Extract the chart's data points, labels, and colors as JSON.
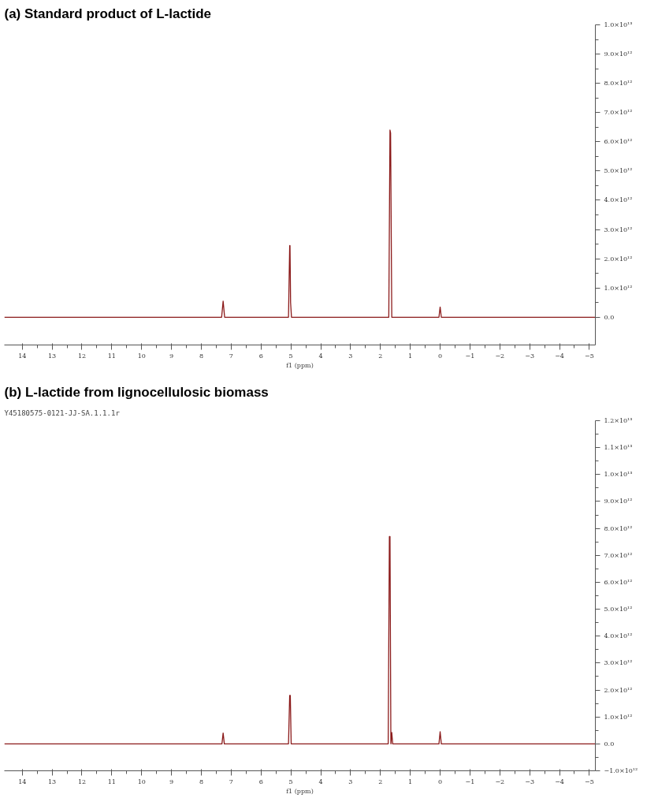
{
  "chart_data": [
    {
      "type": "line",
      "title": "(a) Standard product of L-lactide",
      "xlabel": "f1 (ppm)",
      "x": [
        14.6,
        7.32,
        7.27,
        7.22,
        5.08,
        5.04,
        5.03,
        5.01,
        4.98,
        1.72,
        1.68,
        1.66,
        1.62,
        1.55,
        0.04,
        0.0,
        -0.04,
        -5.2
      ],
      "series": [
        {
          "color": "#8b1a1a",
          "values": [
            0,
            0,
            550000000000.0,
            0,
            0,
            2450000000000.0,
            2450000000000.0,
            500000000000.0,
            0,
            0,
            6400000000000.0,
            6300000000000.0,
            0,
            0,
            0,
            350000000000.0,
            0,
            0
          ]
        }
      ],
      "xlim": [
        14.6,
        -5.2
      ],
      "xticks": [
        14,
        13,
        12,
        11,
        10,
        9,
        8,
        7,
        6,
        5,
        4,
        3,
        2,
        1,
        0,
        {
          "value": -1,
          "label": "−1"
        },
        {
          "value": -2,
          "label": "−2"
        },
        {
          "value": -3,
          "label": "−3"
        },
        {
          "value": -4,
          "label": "−4"
        },
        {
          "value": -5,
          "label": "−5"
        }
      ],
      "ylim": [
        -950000000000.0,
        10000000000000.0
      ],
      "yticks": [
        {
          "value": 0,
          "label": "0.0"
        },
        {
          "value": 1000000000000.0,
          "label": "1.0×10¹²"
        },
        {
          "value": 2000000000000.0,
          "label": "2.0×10¹²"
        },
        {
          "value": 3000000000000.0,
          "label": "3.0×10¹²"
        },
        {
          "value": 4000000000000.0,
          "label": "4.0×10¹²"
        },
        {
          "value": 5000000000000.0,
          "label": "5.0×10¹²"
        },
        {
          "value": 6000000000000.0,
          "label": "6.0×10¹²"
        },
        {
          "value": 7000000000000.0,
          "label": "7.0×10¹²"
        },
        {
          "value": 8000000000000.0,
          "label": "8.0×10¹²"
        },
        {
          "value": 9000000000000.0,
          "label": "9.0×10¹²"
        },
        {
          "value": 10000000000000.0,
          "label": "1.0×10¹³"
        }
      ],
      "grid": false,
      "marker": "none",
      "line_style": "solid"
    },
    {
      "type": "line",
      "title": "(b) L-lactide from lignocellulosic biomass",
      "xlabel": "f1 (ppm)",
      "annotations": [
        "Y45180575-0121-JJ-SA.1.1.1r"
      ],
      "x": [
        14.6,
        7.31,
        7.27,
        7.23,
        5.08,
        5.04,
        5.02,
        4.99,
        1.74,
        1.7,
        1.68,
        1.65,
        1.62,
        1.59,
        1.52,
        0.04,
        0.0,
        -0.04,
        -5.2
      ],
      "series": [
        {
          "color": "#8b1a1a",
          "values": [
            0,
            0,
            400000000000.0,
            0,
            0,
            1800000000000.0,
            1800000000000.0,
            0,
            0,
            7700000000000.0,
            7700000000000.0,
            0,
            420000000000.0,
            0,
            0,
            0,
            450000000000.0,
            0,
            0
          ]
        }
      ],
      "xlim": [
        14.6,
        -5.2
      ],
      "xticks": [
        14,
        13,
        12,
        11,
        10,
        9,
        8,
        7,
        6,
        5,
        4,
        3,
        2,
        1,
        0,
        {
          "value": -1,
          "label": "−1"
        },
        {
          "value": -2,
          "label": "−2"
        },
        {
          "value": -3,
          "label": "−3"
        },
        {
          "value": -4,
          "label": "−4"
        },
        {
          "value": -5,
          "label": "−5"
        }
      ],
      "ylim": [
        -1000000000000.0,
        12000000000000.0
      ],
      "yticks": [
        {
          "value": -1000000000000.0,
          "label": "−1.0×10¹²"
        },
        {
          "value": 0,
          "label": "0.0"
        },
        {
          "value": 1000000000000.0,
          "label": "1.0×10¹²"
        },
        {
          "value": 2000000000000.0,
          "label": "2.0×10¹²"
        },
        {
          "value": 3000000000000.0,
          "label": "3.0×10¹²"
        },
        {
          "value": 4000000000000.0,
          "label": "4.0×10¹²"
        },
        {
          "value": 5000000000000.0,
          "label": "5.0×10¹²"
        },
        {
          "value": 6000000000000.0,
          "label": "6.0×10¹²"
        },
        {
          "value": 7000000000000.0,
          "label": "7.0×10¹²"
        },
        {
          "value": 8000000000000.0,
          "label": "8.0×10¹²"
        },
        {
          "value": 9000000000000.0,
          "label": "9.0×10¹²"
        },
        {
          "value": 10000000000000.0,
          "label": "1.0×10¹³"
        },
        {
          "value": 11000000000000.0,
          "label": "1.1×10¹³"
        },
        {
          "value": 12000000000000.0,
          "label": "1.2×10¹³"
        }
      ],
      "grid": false,
      "marker": "none",
      "line_style": "solid"
    }
  ]
}
